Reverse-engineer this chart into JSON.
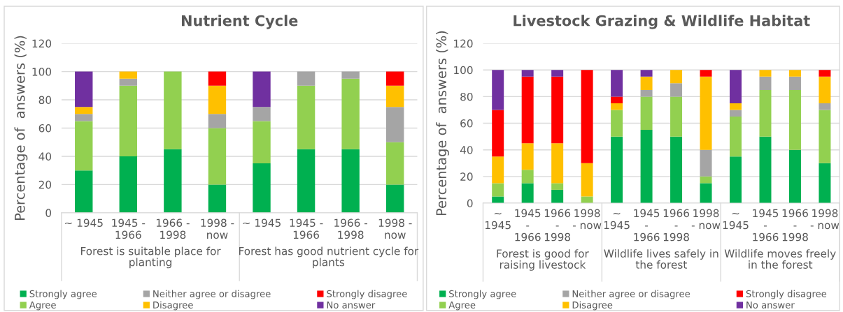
{
  "chart_data": [
    {
      "type": "bar",
      "stacked": true,
      "title": "Nutrient Cycle",
      "ylabel": "Percentage of  answers (%)",
      "categories": [
        "~ 1945",
        "1945 -\n1966",
        "1966 -\n1998",
        "1998 -\nnow",
        "~ 1945",
        "1945 -\n1966",
        "1966 -\n1998",
        "1998 -\nnow"
      ],
      "series": [
        {
          "name": "Strongly agree",
          "color": "#00b050",
          "values": [
            30,
            40,
            45,
            20,
            35,
            45,
            45,
            20
          ]
        },
        {
          "name": "Agree",
          "color": "#92d050",
          "values": [
            35,
            50,
            55,
            40,
            30,
            45,
            50,
            30
          ]
        },
        {
          "name": "Neither agree or disagree",
          "color": "#a5a5a5",
          "values": [
            5,
            5,
            0,
            10,
            10,
            10,
            5,
            25
          ]
        },
        {
          "name": "Disagree",
          "color": "#ffc000",
          "values": [
            5,
            5,
            0,
            20,
            0,
            0,
            0,
            15
          ]
        },
        {
          "name": "Strongly disagree",
          "color": "#ff0000",
          "values": [
            0,
            0,
            0,
            10,
            0,
            0,
            0,
            10
          ]
        },
        {
          "name": "No answer",
          "color": "#7030a0",
          "values": [
            25,
            0,
            0,
            0,
            25,
            0,
            0,
            0
          ]
        }
      ],
      "annotations": [
        "Forest is suitable place for\nplanting",
        "Forest has good nutrient cycle for\nplants"
      ],
      "ylim": [
        0,
        120
      ],
      "yticks": [
        0,
        20,
        40,
        60,
        80,
        100,
        120
      ],
      "grid": "y",
      "legend": "bottom"
    },
    {
      "type": "bar",
      "stacked": true,
      "title": "Livestock Grazing & Wildlife Habitat",
      "ylabel": "Percentage of  answers (%)",
      "categories": [
        "~\n1945",
        "1945\n-\n1966",
        "1966\n-\n1998",
        "1998\n- now",
        "~\n1945",
        "1945\n-\n1966",
        "1966\n-\n1998",
        "1998\n- now",
        "~\n1945",
        "1945\n-\n1966",
        "1966\n-\n1998",
        "1998\n- now"
      ],
      "series": [
        {
          "name": "Strongly agree",
          "color": "#00b050",
          "values": [
            5,
            15,
            10,
            0,
            50,
            55,
            50,
            15,
            35,
            50,
            40,
            30
          ]
        },
        {
          "name": "Agree",
          "color": "#92d050",
          "values": [
            10,
            10,
            5,
            5,
            20,
            25,
            30,
            5,
            30,
            35,
            45,
            40
          ]
        },
        {
          "name": "Neither agree or disagree",
          "color": "#a5a5a5",
          "values": [
            0,
            0,
            0,
            0,
            0,
            5,
            10,
            20,
            5,
            10,
            10,
            5
          ]
        },
        {
          "name": "Disagree",
          "color": "#ffc000",
          "values": [
            20,
            20,
            30,
            25,
            5,
            10,
            10,
            55,
            5,
            5,
            5,
            20
          ]
        },
        {
          "name": "Strongly disagree",
          "color": "#ff0000",
          "values": [
            35,
            50,
            50,
            70,
            5,
            0,
            0,
            5,
            0,
            0,
            0,
            5
          ]
        },
        {
          "name": "No answer",
          "color": "#7030a0",
          "values": [
            30,
            5,
            5,
            0,
            20,
            5,
            0,
            0,
            25,
            0,
            0,
            0
          ]
        }
      ],
      "annotations": [
        "Forest is good for\nraising livestock",
        "Wildlife lives safely in\nthe forest",
        "Wildlife moves freely\nin the forest"
      ],
      "ylim": [
        0,
        120
      ],
      "yticks": [
        0,
        20,
        40,
        60,
        80,
        100,
        120
      ],
      "grid": "y",
      "legend": "bottom"
    }
  ]
}
